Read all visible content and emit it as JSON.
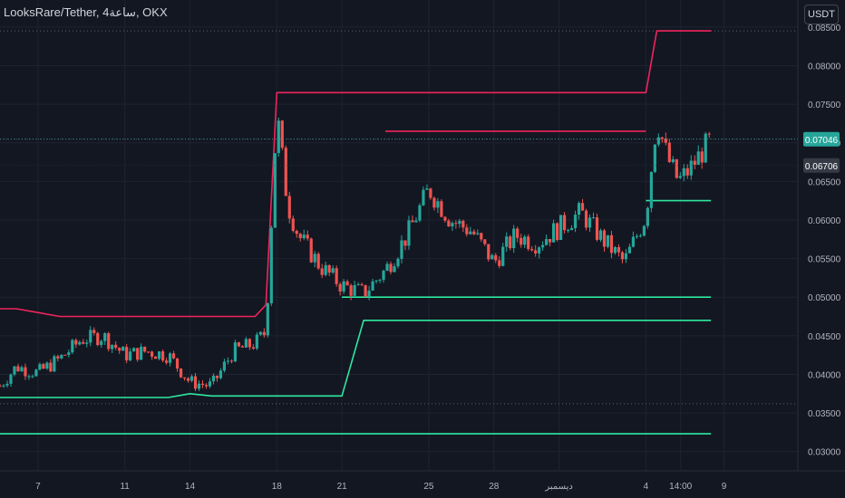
{
  "header": {
    "symbol_title": "LooksRare/Tether, 4ساعة, OKX",
    "currency_button": "USDT"
  },
  "chart_data": {
    "type": "line",
    "title": "LooksRare/Tether, 4ساعة, OKX",
    "y_axis": {
      "ticks": [
        "0.08500",
        "0.08000",
        "0.07500",
        "0.07000",
        "0.06500",
        "0.06000",
        "0.05500",
        "0.05000",
        "0.04500",
        "0.04000",
        "0.03500",
        "0.03000"
      ],
      "tick_values": [
        0.085,
        0.08,
        0.075,
        0.07,
        0.065,
        0.06,
        0.055,
        0.05,
        0.045,
        0.04,
        0.035,
        0.03
      ],
      "range": [
        0.0275,
        0.0885
      ],
      "position": "right"
    },
    "x_axis": {
      "ticks": [
        "7",
        "11",
        "14",
        "18",
        "21",
        "25",
        "28",
        "ديسمبر",
        "4",
        "14:00",
        "9"
      ],
      "range_days": [
        5.25,
        42.0
      ],
      "tick_days": [
        7,
        11,
        14,
        18,
        21,
        25,
        28,
        31,
        35,
        36.6,
        38.6
      ]
    },
    "price_labels": [
      {
        "value": "0.07046",
        "price": 0.07046,
        "color": "#26a69a"
      },
      {
        "value": "0.06706",
        "price": 0.06706,
        "color": "#363a45"
      }
    ],
    "reference_levels": [
      0.0845,
      0.0705,
      0.0362
    ],
    "colors": {
      "background": "#131722",
      "grid": "#1f2330",
      "candle_up": "#26a69a",
      "candle_down": "#ef5350",
      "band_upper": "#f0245c",
      "band_lower": "#2ee89f"
    },
    "series": [
      {
        "name": "close",
        "x": [
          5.25,
          6,
          7,
          8,
          9,
          10,
          11,
          12,
          13,
          14,
          15,
          16,
          17,
          17.5,
          18,
          18.5,
          19,
          20,
          21,
          22,
          23,
          24,
          25,
          26,
          27,
          28,
          29,
          30,
          31,
          32,
          33,
          34,
          35,
          35.5,
          36,
          36.5,
          37,
          38
        ],
        "values": [
          0.0385,
          0.041,
          0.0402,
          0.042,
          0.0445,
          0.045,
          0.0425,
          0.043,
          0.0425,
          0.039,
          0.0385,
          0.043,
          0.044,
          0.0455,
          0.074,
          0.062,
          0.058,
          0.054,
          0.0515,
          0.0505,
          0.0535,
          0.058,
          0.064,
          0.06,
          0.0585,
          0.0545,
          0.058,
          0.057,
          0.059,
          0.061,
          0.0575,
          0.0545,
          0.0605,
          0.073,
          0.068,
          0.065,
          0.0665,
          0.0705
        ]
      },
      {
        "name": "upper_band",
        "x": [
          5.25,
          6,
          7,
          8,
          9,
          10,
          11,
          12,
          13,
          14,
          15,
          16,
          17,
          17.5,
          18,
          19,
          20,
          21,
          22,
          23,
          24,
          25,
          26,
          27,
          28,
          29,
          30,
          31,
          32,
          33,
          34,
          35,
          35.5,
          36,
          37,
          38
        ],
        "values": [
          0.0485,
          0.0485,
          0.048,
          0.0475,
          0.0475,
          0.0475,
          0.0475,
          0.0475,
          0.0475,
          0.0475,
          0.0475,
          0.0475,
          0.0475,
          0.049,
          0.0765,
          0.0765,
          0.0765,
          0.0765,
          0.0765,
          0.0765,
          0.0765,
          0.0765,
          0.0765,
          0.0765,
          0.0765,
          0.0765,
          0.0765,
          0.0765,
          0.0765,
          0.0765,
          0.0765,
          0.0765,
          0.0845,
          0.0845,
          0.0845,
          0.0845
        ]
      },
      {
        "name": "upper_band_2",
        "x": [
          23,
          24,
          25,
          26,
          27,
          28,
          29,
          30,
          31,
          32,
          33,
          34,
          35
        ],
        "values": [
          0.0715,
          0.0715,
          0.0715,
          0.0715,
          0.0715,
          0.0715,
          0.0715,
          0.0715,
          0.0715,
          0.0715,
          0.0715,
          0.0715,
          0.0715
        ]
      },
      {
        "name": "lower_band",
        "x": [
          5.25,
          6,
          7,
          8,
          9,
          10,
          11,
          12,
          13,
          14,
          15,
          16,
          17,
          17.5,
          18,
          19,
          20,
          21,
          22,
          23,
          24,
          25,
          26,
          27,
          28,
          29,
          30,
          31,
          32,
          33,
          34,
          35,
          36,
          37,
          38
        ],
        "values": [
          0.0323,
          0.0323,
          0.0323,
          0.0323,
          0.0323,
          0.0323,
          0.0323,
          0.0323,
          0.0323,
          0.0323,
          0.0323,
          0.0323,
          0.0323,
          0.0323,
          0.0323,
          0.0323,
          0.0323,
          0.0323,
          0.0323,
          0.0323,
          0.0323,
          0.0323,
          0.0323,
          0.0323,
          0.0323,
          0.0323,
          0.0323,
          0.0323,
          0.0323,
          0.0323,
          0.0323,
          0.0323,
          0.0323,
          0.0323,
          0.0323
        ]
      },
      {
        "name": "lower_band_2",
        "x": [
          5.25,
          7,
          9,
          11,
          13,
          14,
          15,
          17,
          17.5,
          18,
          19,
          20,
          21,
          22,
          24,
          26,
          28,
          30,
          32,
          34,
          35,
          36,
          37,
          38
        ],
        "values": [
          0.037,
          0.037,
          0.037,
          0.037,
          0.037,
          0.0375,
          0.0372,
          0.0372,
          0.0372,
          0.0372,
          0.0372,
          0.0372,
          0.0372,
          0.047,
          0.047,
          0.047,
          0.047,
          0.047,
          0.047,
          0.047,
          0.047,
          0.047,
          0.047,
          0.047
        ]
      },
      {
        "name": "lower_band_3",
        "x": [
          21,
          22,
          24,
          26,
          28,
          30,
          32,
          34,
          35,
          36,
          37,
          38
        ],
        "values": [
          0.05,
          0.05,
          0.05,
          0.05,
          0.05,
          0.05,
          0.05,
          0.05,
          0.05,
          0.05,
          0.05,
          0.05
        ]
      },
      {
        "name": "lower_band_4",
        "x": [
          35,
          36,
          37,
          38
        ],
        "values": [
          0.0625,
          0.0625,
          0.0625,
          0.0625
        ]
      }
    ]
  }
}
